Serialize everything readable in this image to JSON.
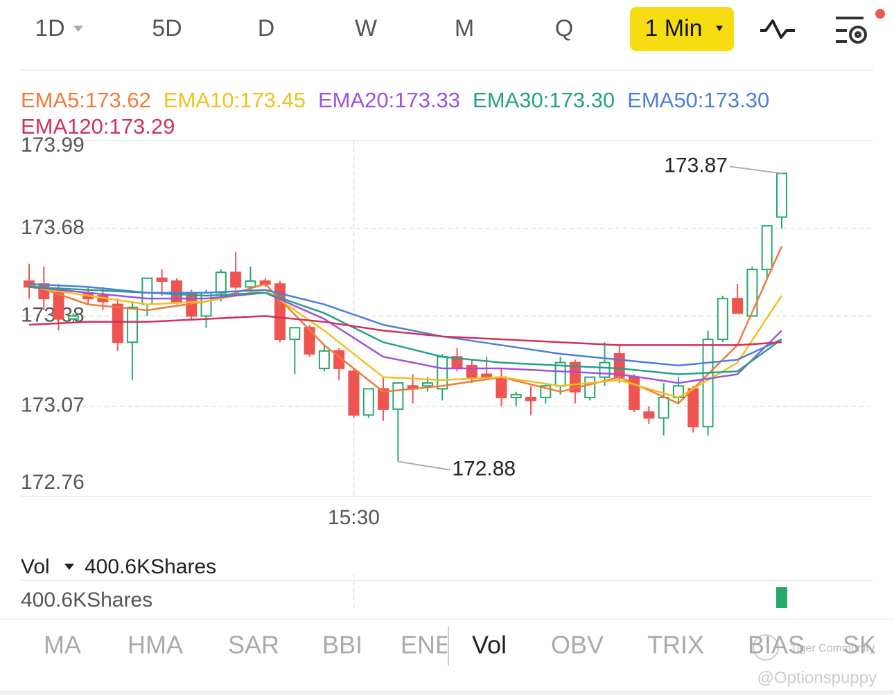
{
  "toolbar": {
    "periods": [
      "1D",
      "5D",
      "D",
      "W",
      "M",
      "Q"
    ],
    "interval": "1 Min"
  },
  "chart_data": {
    "type": "candlestick",
    "up_color": "#27a96c",
    "down_color": "#ee5450",
    "ylim": [
      172.76,
      173.99
    ],
    "yticks": [
      173.99,
      173.68,
      173.38,
      173.07,
      172.76
    ],
    "grid": true,
    "xlim": [
      0,
      51
    ],
    "xticks": [
      {
        "value": 22,
        "label": "15:30"
      }
    ],
    "open": [
      173.5,
      173.49,
      173.47,
      173.37,
      173.46,
      173.45,
      173.42,
      173.29,
      173.42,
      173.51,
      173.5,
      173.46,
      173.38,
      173.46,
      173.53,
      173.48,
      173.5,
      173.49,
      173.3,
      173.34,
      173.2,
      173.26,
      173.19,
      173.04,
      173.13,
      173.06,
      173.14,
      173.14,
      173.13,
      173.24,
      173.21,
      173.18,
      173.17,
      173.1,
      173.1,
      173.1,
      173.14,
      173.22,
      173.1,
      173.17,
      173.25,
      173.17,
      173.05,
      173.03,
      173.1,
      173.13,
      173.0,
      173.3,
      173.44,
      173.38,
      173.54,
      173.72
    ],
    "high": [
      173.56,
      173.55,
      173.49,
      173.39,
      173.48,
      173.48,
      173.44,
      173.43,
      173.51,
      173.54,
      173.51,
      173.47,
      173.47,
      173.54,
      173.6,
      173.55,
      173.51,
      173.5,
      173.34,
      173.35,
      173.28,
      173.27,
      173.2,
      173.13,
      173.17,
      173.15,
      173.18,
      173.17,
      173.25,
      173.27,
      173.23,
      173.24,
      173.2,
      173.12,
      173.14,
      173.15,
      173.24,
      173.23,
      173.17,
      173.29,
      173.28,
      173.18,
      173.07,
      173.15,
      173.17,
      173.14,
      173.33,
      173.45,
      173.49,
      173.55,
      173.69,
      173.87
    ],
    "low": [
      173.44,
      173.4,
      173.33,
      173.36,
      173.42,
      173.4,
      173.26,
      173.16,
      173.38,
      173.45,
      173.42,
      173.37,
      173.34,
      173.43,
      173.47,
      173.46,
      173.48,
      173.29,
      173.18,
      173.24,
      173.19,
      173.16,
      173.03,
      173.03,
      173.02,
      172.88,
      173.08,
      173.12,
      173.09,
      173.19,
      173.15,
      173.16,
      173.07,
      173.07,
      173.04,
      173.08,
      173.11,
      173.08,
      173.09,
      173.14,
      173.15,
      173.05,
      173.01,
      172.97,
      173.08,
      172.98,
      172.97,
      173.29,
      173.39,
      173.38,
      173.51,
      173.68
    ],
    "close": [
      173.48,
      173.44,
      173.37,
      173.38,
      173.44,
      173.43,
      173.29,
      173.41,
      173.51,
      173.5,
      173.43,
      173.38,
      173.46,
      173.53,
      173.48,
      173.5,
      173.49,
      173.3,
      173.34,
      173.25,
      173.26,
      173.2,
      173.04,
      173.13,
      173.06,
      173.15,
      173.13,
      173.15,
      173.24,
      173.2,
      173.17,
      173.17,
      173.1,
      173.11,
      173.09,
      173.14,
      173.22,
      173.12,
      173.17,
      173.22,
      173.17,
      173.06,
      173.03,
      173.1,
      173.14,
      173.0,
      173.3,
      173.44,
      173.39,
      173.54,
      173.69,
      173.87
    ],
    "annotations": [
      {
        "index": 51,
        "value": 173.87
      },
      {
        "index": 25,
        "value": 172.88
      }
    ],
    "series": [
      {
        "name": "EMA5:173.62",
        "color": "#f07a3a",
        "x": [
          0,
          4,
          8,
          12,
          16,
          20,
          24,
          28,
          32,
          36,
          40,
          44,
          48,
          51
        ],
        "values": [
          173.49,
          173.42,
          173.4,
          173.43,
          173.49,
          173.28,
          173.12,
          173.14,
          173.17,
          173.12,
          173.17,
          173.08,
          173.28,
          173.62
        ]
      },
      {
        "name": "EMA10:173.45",
        "color": "#f2c01e",
        "x": [
          0,
          4,
          8,
          12,
          16,
          20,
          24,
          28,
          32,
          36,
          40,
          44,
          48,
          51
        ],
        "values": [
          173.48,
          173.45,
          173.42,
          173.43,
          173.47,
          173.33,
          173.17,
          173.16,
          173.17,
          173.14,
          173.16,
          173.1,
          173.22,
          173.45
        ]
      },
      {
        "name": "EMA20:173.33",
        "color": "#a050e0",
        "x": [
          0,
          4,
          8,
          12,
          16,
          20,
          24,
          28,
          32,
          36,
          40,
          44,
          48,
          51
        ],
        "values": [
          173.48,
          173.46,
          173.44,
          173.44,
          173.46,
          173.37,
          173.24,
          173.2,
          173.2,
          173.19,
          173.18,
          173.15,
          173.18,
          173.33
        ]
      },
      {
        "name": "EMA30:173.30",
        "color": "#26a08a",
        "x": [
          0,
          4,
          8,
          12,
          16,
          20,
          24,
          28,
          32,
          36,
          40,
          44,
          48,
          51
        ],
        "values": [
          173.48,
          173.47,
          173.46,
          173.45,
          173.46,
          173.39,
          173.29,
          173.24,
          173.22,
          173.21,
          173.2,
          173.18,
          173.19,
          173.3
        ]
      },
      {
        "name": "EMA50:173.30",
        "color": "#4a7fe0",
        "x": [
          0,
          4,
          8,
          12,
          16,
          20,
          24,
          28,
          32,
          36,
          40,
          44,
          48,
          51
        ],
        "values": [
          173.49,
          173.48,
          173.46,
          173.46,
          173.47,
          173.42,
          173.35,
          173.31,
          173.28,
          173.25,
          173.23,
          173.21,
          173.23,
          173.3
        ]
      },
      {
        "name": "EMA120:173.29",
        "color": "#d0305a",
        "x": [
          0,
          4,
          8,
          12,
          16,
          20,
          24,
          28,
          32,
          36,
          40,
          44,
          48,
          51
        ],
        "values": [
          173.35,
          173.36,
          173.36,
          173.37,
          173.38,
          173.36,
          173.33,
          173.31,
          173.3,
          173.29,
          173.28,
          173.28,
          173.28,
          173.29
        ]
      }
    ]
  },
  "volume": {
    "title": "Vol",
    "current": "400.6KShares",
    "axis_label": "400.6KShares",
    "index": 51,
    "value": 400600,
    "ylim": [
      0,
      400600
    ]
  },
  "indicators": {
    "tabs": [
      "MA",
      "HMA",
      "SAR",
      "BBI",
      "ENE",
      "Vol",
      "OBV",
      "TRIX",
      "BIAS",
      "SK"
    ],
    "selected": 5
  },
  "watermark": {
    "brand": "Tiger Community",
    "user": "@Optionspuppy"
  }
}
